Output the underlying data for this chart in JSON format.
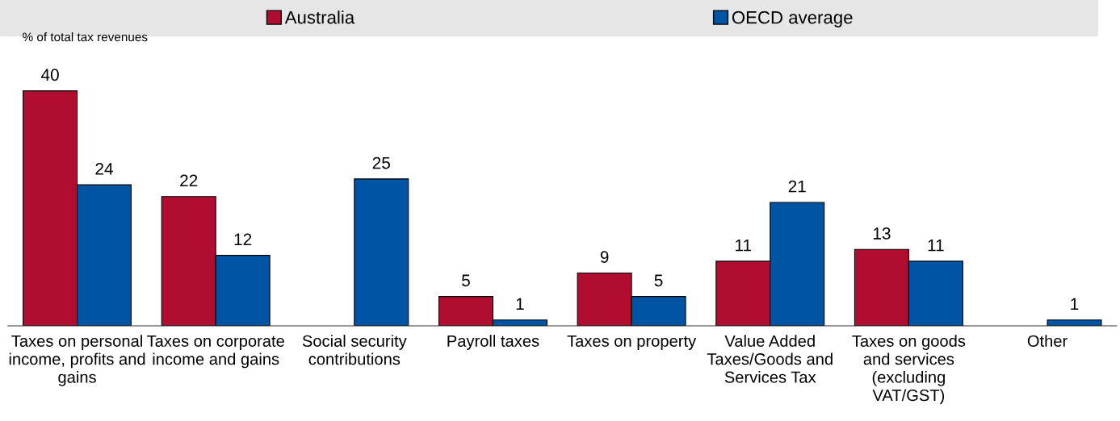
{
  "chart_data": {
    "type": "bar",
    "ylabel": "% of total tax revenues",
    "categories": [
      "Taxes on personal\nincome, profits and\ngains",
      "Taxes on corporate\nincome and gains",
      "Social security\ncontributions",
      "Payroll taxes",
      "Taxes on property",
      "Value Added\nTaxes/Goods and\nServices Tax",
      "Taxes on goods\nand services\n(excluding\nVAT/GST)",
      "Other"
    ],
    "series": [
      {
        "name": "Australia",
        "color": "#b00d30",
        "values": [
          40,
          22,
          null,
          5,
          9,
          11,
          13,
          null
        ]
      },
      {
        "name": "OECD average",
        "color": "#0054a4",
        "values": [
          24,
          12,
          25,
          1,
          5,
          21,
          11,
          1
        ]
      }
    ],
    "data_labels": true,
    "legend": "top",
    "grid": false
  }
}
